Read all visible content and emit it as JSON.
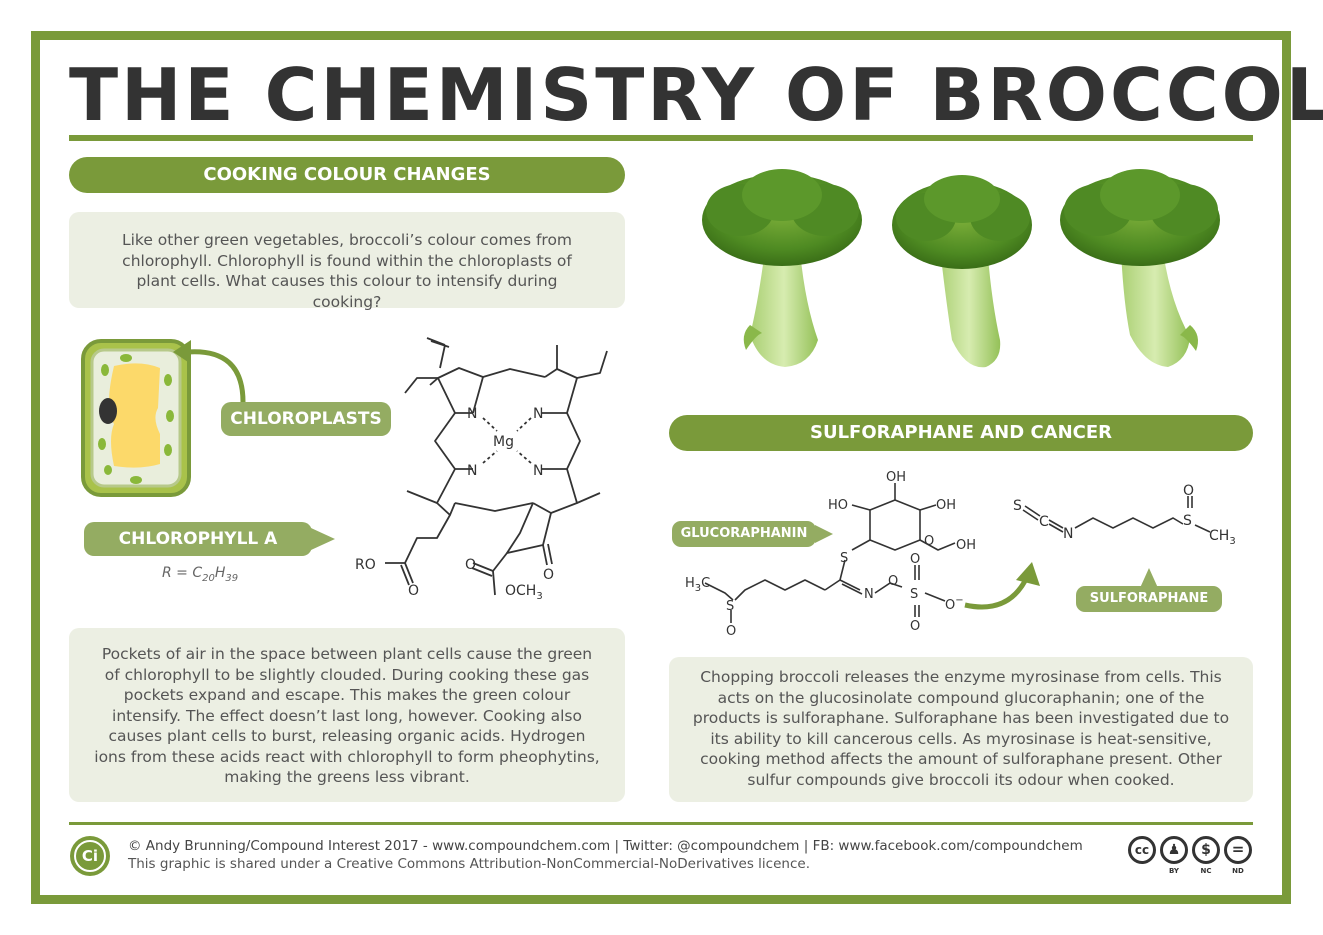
{
  "title": "THE CHEMISTRY OF BROCCOLI",
  "colors": {
    "accent": "#7a9a3a",
    "callout": "#94ac62",
    "panel": "#ecefe3",
    "text": "#4a4a4a"
  },
  "cooking": {
    "header": "COOKING COLOUR CHANGES",
    "intro": "Like other green vegetables, broccoli’s colour comes from chlorophyll. Chlorophyll is found within the chloroplasts of plant cells. What causes this colour to intensify during cooking?",
    "chloroplasts_label": "CHLOROPLASTS",
    "chlorophyll_label": "CHLOROPHYLL A",
    "r_note": "R = C",
    "r_sub1": "20",
    "r_mid": "H",
    "r_sub2": "39",
    "explanation": "Pockets of air in the space between plant cells cause the green of chlorophyll to be slightly clouded. During cooking these gas pockets expand and escape. This makes the green colour intensify. The effect doesn’t last long, however. Cooking also causes plant cells to burst, releasing organic acids. Hydrogen ions from these acids react with chlorophyll to form pheophytins, making the greens less vibrant."
  },
  "chlorophyll_atoms": {
    "n": "N",
    "mg": "Mg",
    "ro": "RO",
    "o": "O",
    "och3": "OCH",
    "three": "3"
  },
  "sulforaphane": {
    "header": "SULFORAPHANE AND CANCER",
    "glucoraphanin_label": "GLUCORAPHANIN",
    "sulforaphane_label": "SULFORAPHANE",
    "explanation": "Chopping broccoli releases the enzyme myrosinase from cells. This acts on the glucosinolate compound glucoraphanin; one of the products is sulforaphane. Sulforaphane has been investigated due to its ability to kill cancerous cells. As myrosinase is heat-sensitive, cooking method affects the amount of sulforaphane present. Other sulfur compounds give broccoli its odour when cooked."
  },
  "glucoraphanin_atoms": {
    "oh": "OH",
    "ho": "HO",
    "o": "O",
    "s": "S",
    "n": "N",
    "h3c": "H",
    "h3c_sub": "3",
    "c": "C",
    "minus": "−"
  },
  "sulforaphane_atoms": {
    "s": "S",
    "c": "C",
    "n": "N",
    "o": "O",
    "ch": "CH",
    "three": "3"
  },
  "footer": {
    "logo": "Ci",
    "credit": "© Andy Brunning/Compound Interest 2017 - www.compoundchem.com | Twitter: @compoundchem | FB: www.facebook.com/compoundchem",
    "licence": "This graphic is shared under a Creative Commons Attribution-NonCommercial-NoDerivatives licence.",
    "cc_badges": {
      "cc": "cc",
      "by": "BY",
      "nc": "NC",
      "nd": "ND"
    }
  }
}
